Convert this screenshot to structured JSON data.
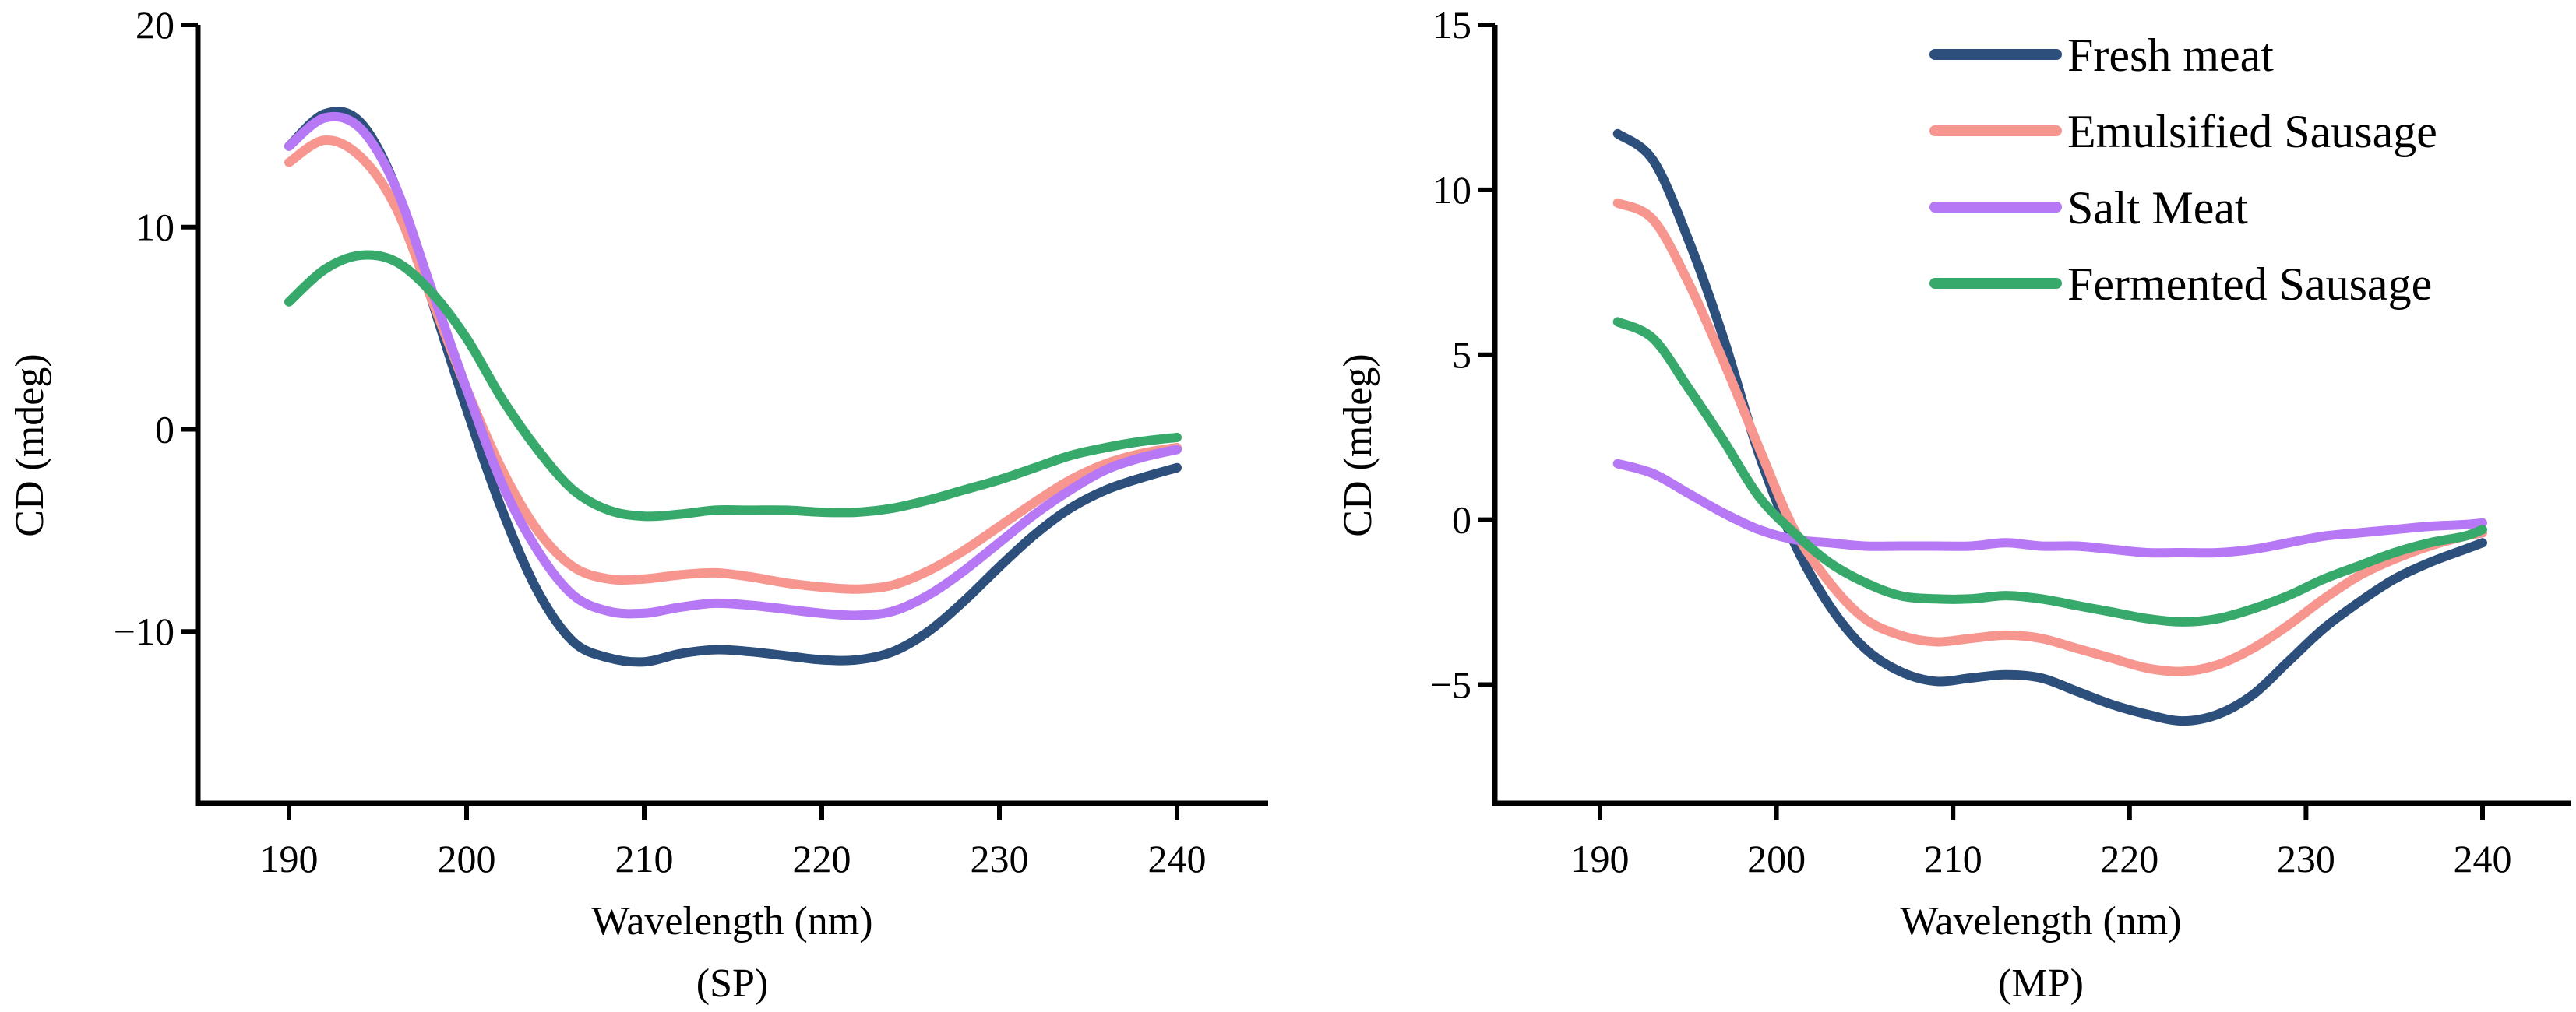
{
  "legend": [
    "Fresh meat",
    "Emulsified Sausage",
    "Salt Meat",
    "Fermented Sausage"
  ],
  "colors": {
    "Fresh meat": "#2d4f7c",
    "Emulsified Sausage": "#f7958f",
    "Salt Meat": "#b678f5",
    "Fermented Sausage": "#37a96b"
  },
  "chart_data": [
    {
      "type": "line",
      "caption": "(SP)",
      "xlabel": "Wavelength (nm)",
      "ylabel": "CD (mdeg)",
      "xlim": [
        185,
        245
      ],
      "ylim": [
        -18.5,
        20
      ],
      "xticks": [
        190,
        200,
        210,
        220,
        230,
        240
      ],
      "yticks": [
        20,
        10,
        0,
        -10
      ],
      "ytick_labels": [
        "20",
        "10",
        "0",
        "−10"
      ],
      "legend": "none",
      "x": [
        190,
        192,
        194,
        196,
        198,
        200,
        202,
        204,
        206,
        208,
        210,
        212,
        214,
        216,
        218,
        220,
        222,
        224,
        226,
        228,
        230,
        232,
        234,
        236,
        238,
        240
      ],
      "series": [
        {
          "name": "Fresh meat",
          "values": [
            14,
            15.6,
            15.2,
            12,
            6.5,
            1,
            -4,
            -8,
            -10.5,
            -11.3,
            -11.5,
            -11.1,
            -10.9,
            -11,
            -11.2,
            -11.4,
            -11.4,
            -11,
            -10,
            -8.5,
            -6.8,
            -5.2,
            -3.9,
            -3,
            -2.4,
            -1.9
          ]
        },
        {
          "name": "Emulsified Sausage",
          "values": [
            13.2,
            14.3,
            13.5,
            11,
            6.5,
            2,
            -2,
            -5,
            -6.8,
            -7.4,
            -7.4,
            -7.2,
            -7.1,
            -7.3,
            -7.6,
            -7.8,
            -7.9,
            -7.7,
            -7,
            -6,
            -4.8,
            -3.6,
            -2.5,
            -1.7,
            -1.2,
            -0.9
          ]
        },
        {
          "name": "Salt Meat",
          "values": [
            14,
            15.4,
            14.9,
            12,
            7,
            2,
            -2.7,
            -6,
            -8.2,
            -9,
            -9.1,
            -8.8,
            -8.6,
            -8.7,
            -8.9,
            -9.1,
            -9.2,
            -9,
            -8.2,
            -7,
            -5.6,
            -4.2,
            -3,
            -2,
            -1.4,
            -1
          ]
        },
        {
          "name": "Fermented Sausage",
          "values": [
            6.3,
            7.9,
            8.6,
            8.3,
            6.8,
            4.5,
            1.5,
            -1,
            -3,
            -4,
            -4.3,
            -4.2,
            -4,
            -4,
            -4,
            -4.1,
            -4.1,
            -3.9,
            -3.5,
            -3,
            -2.5,
            -1.9,
            -1.3,
            -0.9,
            -0.6,
            -0.4
          ]
        }
      ]
    },
    {
      "type": "line",
      "caption": "(MP)",
      "xlabel": "Wavelength (nm)",
      "ylabel": "CD (mdeg)",
      "xlim": [
        185,
        245
      ],
      "ylim": [
        -8.6,
        15
      ],
      "xticks": [
        190,
        200,
        210,
        220,
        230,
        240
      ],
      "yticks": [
        15,
        10,
        5,
        0,
        -5
      ],
      "ytick_labels": [
        "15",
        "10",
        "5",
        "0",
        "−5"
      ],
      "legend": "top-right",
      "x": [
        191,
        193,
        195,
        197,
        199,
        201,
        203,
        205,
        207,
        209,
        211,
        213,
        215,
        217,
        219,
        221,
        223,
        225,
        227,
        229,
        231,
        233,
        235,
        237,
        239,
        240
      ],
      "series": [
        {
          "name": "Fresh meat",
          "values": [
            11.7,
            10.9,
            8.5,
            5.5,
            2,
            -0.7,
            -2.6,
            -3.9,
            -4.6,
            -4.9,
            -4.8,
            -4.7,
            -4.8,
            -5.2,
            -5.6,
            -5.9,
            -6.1,
            -5.9,
            -5.3,
            -4.3,
            -3.3,
            -2.5,
            -1.8,
            -1.3,
            -0.9,
            -0.7
          ]
        },
        {
          "name": "Emulsified Sausage",
          "values": [
            9.6,
            9.1,
            7.2,
            4.8,
            2.2,
            -0.3,
            -1.9,
            -3,
            -3.5,
            -3.7,
            -3.6,
            -3.5,
            -3.6,
            -3.9,
            -4.2,
            -4.5,
            -4.6,
            -4.4,
            -3.9,
            -3.2,
            -2.4,
            -1.7,
            -1.2,
            -0.8,
            -0.5,
            -0.4
          ]
        },
        {
          "name": "Salt Meat",
          "values": [
            1.7,
            1.4,
            0.8,
            0.2,
            -0.3,
            -0.6,
            -0.7,
            -0.8,
            -0.8,
            -0.8,
            -0.8,
            -0.7,
            -0.8,
            -0.8,
            -0.9,
            -1,
            -1,
            -1,
            -0.9,
            -0.7,
            -0.5,
            -0.4,
            -0.3,
            -0.2,
            -0.15,
            -0.1
          ]
        },
        {
          "name": "Fermented Sausage",
          "values": [
            6,
            5.5,
            4,
            2.4,
            0.7,
            -0.4,
            -1.3,
            -1.9,
            -2.3,
            -2.4,
            -2.4,
            -2.3,
            -2.4,
            -2.6,
            -2.8,
            -3,
            -3.1,
            -3,
            -2.7,
            -2.3,
            -1.8,
            -1.4,
            -1,
            -0.7,
            -0.5,
            -0.3
          ]
        }
      ]
    }
  ]
}
